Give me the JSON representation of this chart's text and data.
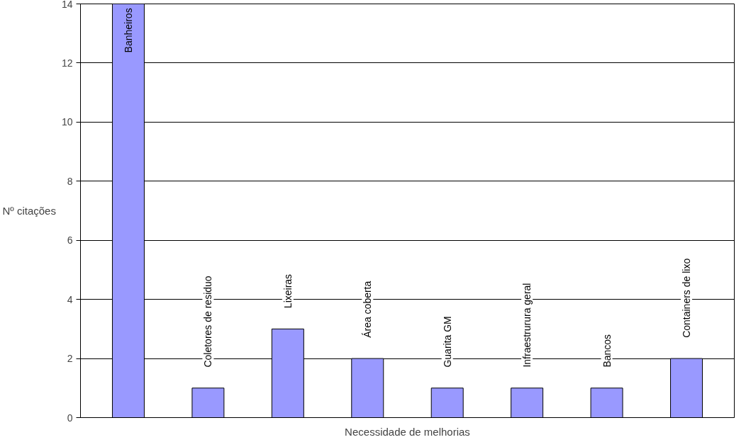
{
  "chart_data": {
    "type": "bar",
    "xlabel": "Necessidade de melhorias",
    "ylabel": "Nº citações",
    "categories": [
      "Banheiros",
      "Coletores de residuo",
      "Lixeiras",
      "Área coberta",
      "Guarita GM",
      "Infraestrurura geral",
      "Bancos",
      "Containers de lixo"
    ],
    "values": [
      14,
      1,
      3,
      2,
      1,
      1,
      1,
      2
    ],
    "color": "#9999ff",
    "ylim": [
      0,
      14
    ],
    "yticks": [
      0,
      2,
      4,
      6,
      8,
      10,
      12,
      14
    ],
    "grid": "y",
    "tick_labels": "y"
  }
}
